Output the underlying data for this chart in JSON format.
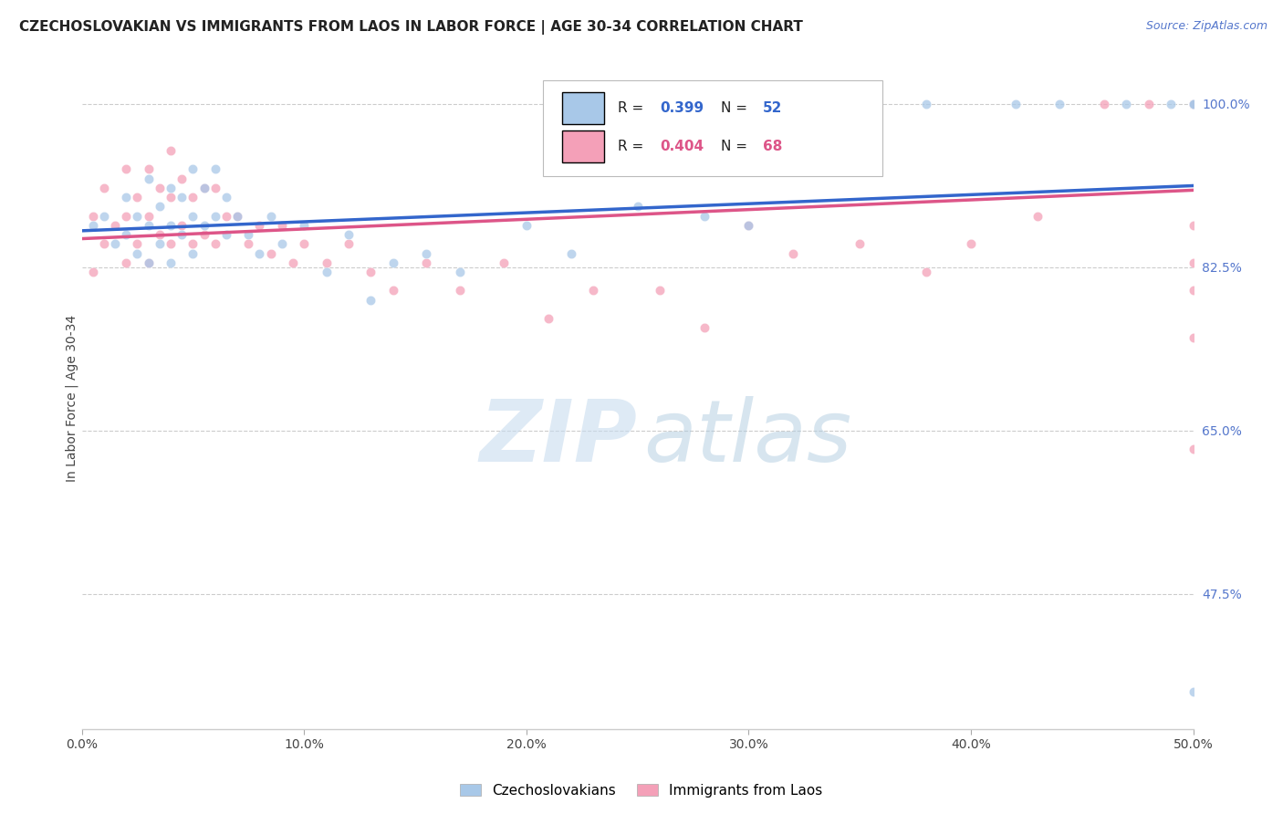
{
  "title": "CZECHOSLOVAKIAN VS IMMIGRANTS FROM LAOS IN LABOR FORCE | AGE 30-34 CORRELATION CHART",
  "source": "Source: ZipAtlas.com",
  "ylabel": "In Labor Force | Age 30-34",
  "xmin": 0.0,
  "xmax": 0.5,
  "ymin": 0.33,
  "ymax": 1.04,
  "blue_R": "0.399",
  "blue_N": "52",
  "pink_R": "0.404",
  "pink_N": "68",
  "blue_color": "#a8c8e8",
  "pink_color": "#f4a0b8",
  "blue_line_color": "#3366cc",
  "pink_line_color": "#dd5588",
  "blue_scatter_x": [
    0.005,
    0.01,
    0.015,
    0.02,
    0.02,
    0.025,
    0.025,
    0.03,
    0.03,
    0.03,
    0.035,
    0.035,
    0.04,
    0.04,
    0.04,
    0.045,
    0.045,
    0.05,
    0.05,
    0.05,
    0.055,
    0.055,
    0.06,
    0.06,
    0.065,
    0.065,
    0.07,
    0.075,
    0.08,
    0.085,
    0.09,
    0.1,
    0.11,
    0.12,
    0.13,
    0.14,
    0.155,
    0.17,
    0.2,
    0.22,
    0.25,
    0.28,
    0.3,
    0.35,
    0.38,
    0.42,
    0.44,
    0.47,
    0.49,
    0.5,
    0.5,
    0.5
  ],
  "blue_scatter_y": [
    0.87,
    0.88,
    0.85,
    0.9,
    0.86,
    0.88,
    0.84,
    0.92,
    0.87,
    0.83,
    0.89,
    0.85,
    0.91,
    0.87,
    0.83,
    0.9,
    0.86,
    0.93,
    0.88,
    0.84,
    0.91,
    0.87,
    0.93,
    0.88,
    0.9,
    0.86,
    0.88,
    0.86,
    0.84,
    0.88,
    0.85,
    0.87,
    0.82,
    0.86,
    0.79,
    0.83,
    0.84,
    0.82,
    0.87,
    0.84,
    0.89,
    0.88,
    0.87,
    1.0,
    1.0,
    1.0,
    1.0,
    1.0,
    1.0,
    1.0,
    1.0,
    0.37
  ],
  "pink_scatter_x": [
    0.005,
    0.005,
    0.01,
    0.01,
    0.015,
    0.02,
    0.02,
    0.02,
    0.025,
    0.025,
    0.03,
    0.03,
    0.03,
    0.035,
    0.035,
    0.04,
    0.04,
    0.04,
    0.045,
    0.045,
    0.05,
    0.05,
    0.055,
    0.055,
    0.06,
    0.06,
    0.065,
    0.07,
    0.075,
    0.08,
    0.085,
    0.09,
    0.095,
    0.1,
    0.11,
    0.12,
    0.13,
    0.14,
    0.155,
    0.17,
    0.19,
    0.21,
    0.23,
    0.26,
    0.28,
    0.3,
    0.32,
    0.35,
    0.38,
    0.4,
    0.43,
    0.46,
    0.48,
    0.5,
    0.5,
    0.5,
    0.5,
    0.5,
    0.5,
    0.5,
    0.5,
    0.5,
    0.5,
    0.5,
    0.5,
    0.5,
    0.5,
    0.5
  ],
  "pink_scatter_y": [
    0.88,
    0.82,
    0.91,
    0.85,
    0.87,
    0.93,
    0.88,
    0.83,
    0.9,
    0.85,
    0.93,
    0.88,
    0.83,
    0.91,
    0.86,
    0.95,
    0.9,
    0.85,
    0.92,
    0.87,
    0.9,
    0.85,
    0.91,
    0.86,
    0.91,
    0.85,
    0.88,
    0.88,
    0.85,
    0.87,
    0.84,
    0.87,
    0.83,
    0.85,
    0.83,
    0.85,
    0.82,
    0.8,
    0.83,
    0.8,
    0.83,
    0.77,
    0.8,
    0.8,
    0.76,
    0.87,
    0.84,
    0.85,
    0.82,
    0.85,
    0.88,
    1.0,
    1.0,
    1.0,
    1.0,
    1.0,
    1.0,
    1.0,
    1.0,
    0.63,
    1.0,
    1.0,
    1.0,
    1.0,
    0.87,
    0.83,
    0.8,
    0.75
  ]
}
